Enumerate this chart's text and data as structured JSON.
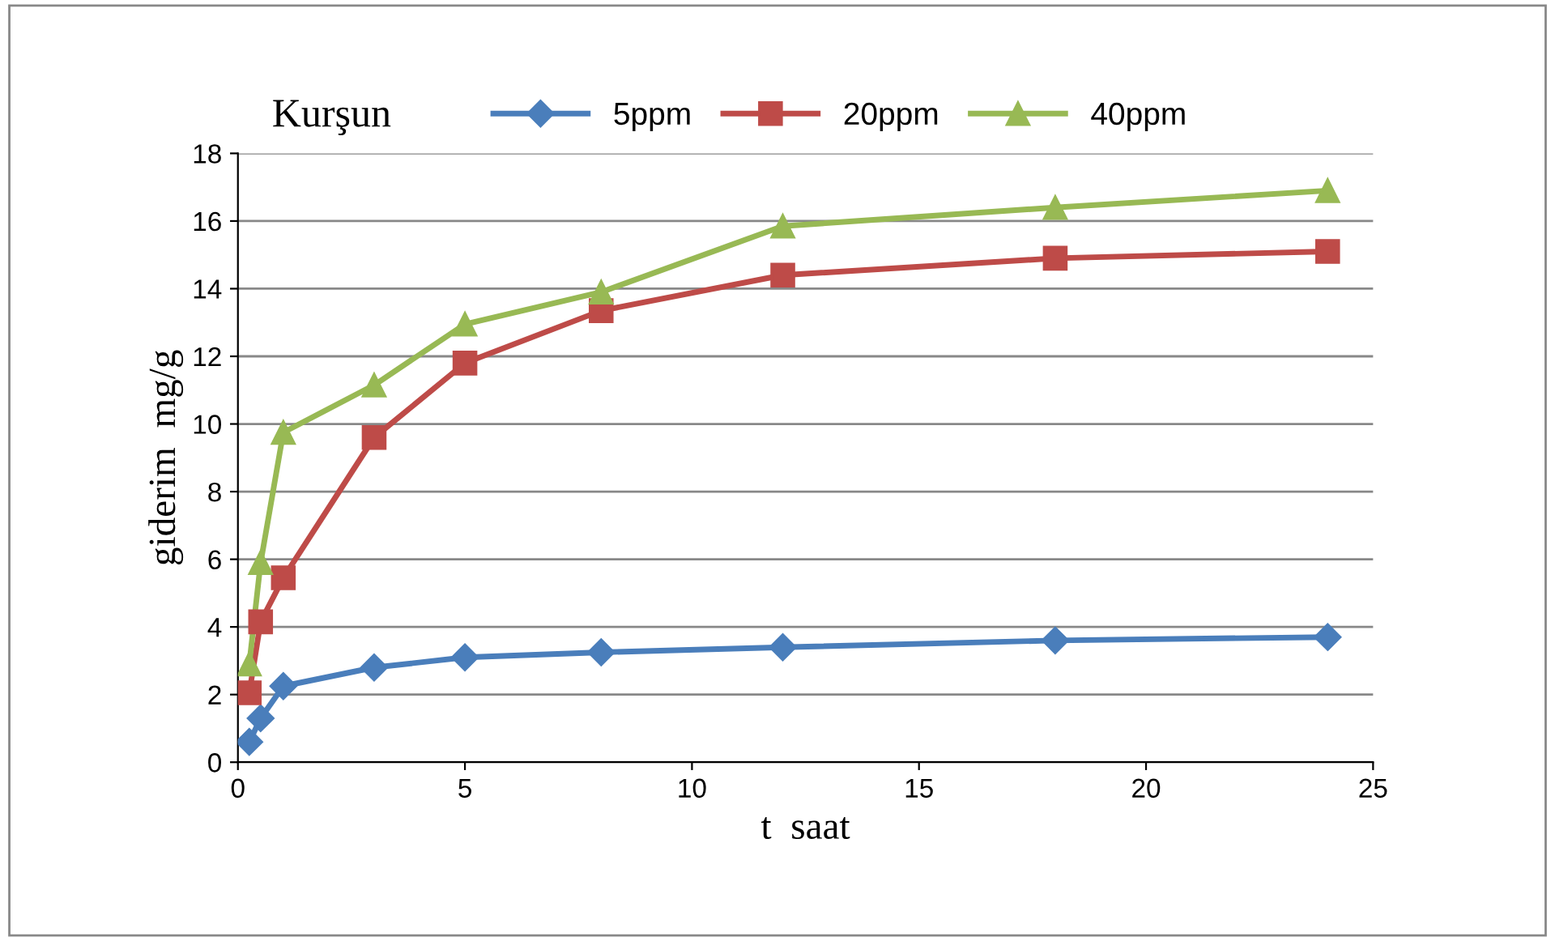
{
  "chart_data": {
    "type": "line",
    "legend_title": "Kurşun",
    "xlabel": "t  saat",
    "ylabel": "giderim  mg/g",
    "x": [
      0.25,
      0.5,
      1,
      3,
      5,
      8,
      12,
      18,
      24
    ],
    "series": [
      {
        "name": "5ppm",
        "color": "#4a7ebb",
        "marker": "diamond",
        "values": [
          0.6,
          1.3,
          2.25,
          2.8,
          3.1,
          3.25,
          3.4,
          3.6,
          3.7
        ]
      },
      {
        "name": "20ppm",
        "color": "#be4b48",
        "marker": "square",
        "values": [
          2.05,
          4.15,
          5.45,
          9.6,
          11.8,
          13.35,
          14.4,
          14.9,
          15.1
        ]
      },
      {
        "name": "40ppm",
        "color": "#98b954",
        "marker": "triangle",
        "values": [
          2.9,
          5.9,
          9.75,
          11.15,
          12.95,
          13.9,
          15.85,
          16.4,
          16.9
        ]
      }
    ],
    "xlim": [
      0,
      25
    ],
    "xticks": [
      0,
      5,
      10,
      15,
      20,
      25
    ],
    "ylim": [
      0,
      18
    ],
    "yticks": [
      0,
      2,
      4,
      6,
      8,
      10,
      12,
      14,
      16,
      18
    ],
    "grid": "y",
    "legend": "top",
    "line_style": "solid"
  }
}
